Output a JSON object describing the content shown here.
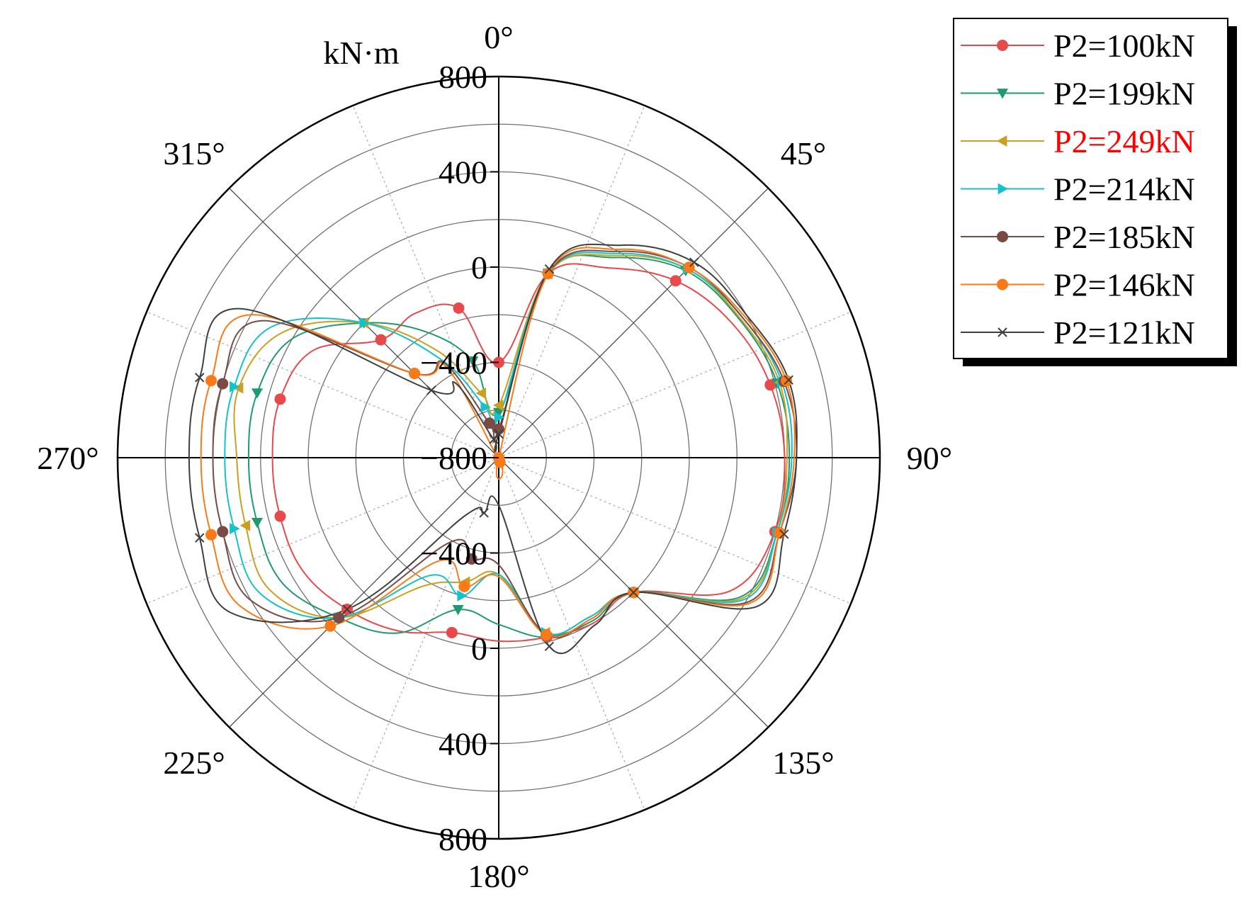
{
  "chart_data": {
    "type": "line",
    "subtype": "polar",
    "unit_label": "kN·m",
    "radial_axis": {
      "range": [
        -800,
        800
      ],
      "ticks": [
        -800,
        -400,
        0,
        400,
        800
      ],
      "tick_labels": [
        "−800",
        "−400",
        "0",
        "400",
        "800"
      ]
    },
    "angle_axis": {
      "ticks": [
        0,
        45,
        90,
        135,
        180,
        225,
        270,
        315
      ],
      "tick_labels": [
        "0°",
        "45°",
        "90°",
        "135°",
        "180°",
        "225°",
        "270°",
        "315°"
      ],
      "direction": "clockwise",
      "zero_at": "top"
    },
    "grid": true,
    "legend_position": "top-right",
    "angles": [
      0,
      15,
      30,
      45,
      60,
      75,
      90,
      105,
      120,
      135,
      150,
      165,
      180,
      195,
      210,
      225,
      240,
      255,
      270,
      285,
      300,
      315,
      330,
      345
    ],
    "series": [
      {
        "name": "P2=100kN",
        "color": "#e8494b",
        "marker": "circle",
        "values": [
          -400,
          0,
          120,
          250,
          330,
          380,
          400,
          400,
          320,
          0,
          0,
          -20,
          -30,
          -40,
          40,
          100,
          150,
          150,
          150,
          150,
          100,
          -100,
          -100,
          -150
        ]
      },
      {
        "name": "P2=199kN",
        "color": "#1f9a6f",
        "marker": "triangle-down",
        "values": [
          -610,
          0,
          170,
          310,
          365,
          410,
          420,
          410,
          370,
          0,
          -10,
          -20,
          -100,
          -140,
          50,
          150,
          250,
          250,
          250,
          250,
          200,
          0,
          -190,
          -380
        ]
      },
      {
        "name": "P2=249kN",
        "color": "#c9a020",
        "marker": "triangle-left",
        "values": [
          -580,
          0,
          180,
          320,
          370,
          420,
          410,
          410,
          380,
          0,
          -30,
          -40,
          -310,
          -260,
          -180,
          150,
          310,
          300,
          300,
          330,
          250,
          0,
          -280,
          -520
        ]
      },
      {
        "name": "P2=214kN",
        "color": "#14c2cc",
        "marker": "triangle-right",
        "values": [
          -630,
          0,
          190,
          320,
          380,
          430,
          430,
          410,
          390,
          0,
          -30,
          -40,
          -310,
          -200,
          -230,
          150,
          350,
          350,
          350,
          350,
          300,
          0,
          -330,
          -580
        ]
      },
      {
        "name": "P2=185kN",
        "color": "#7a4a45",
        "marker": "circle",
        "values": [
          -680,
          0,
          200,
          330,
          380,
          440,
          450,
          420,
          410,
          0,
          -20,
          -30,
          -350,
          -360,
          -390,
          150,
          400,
          400,
          400,
          400,
          350,
          -300,
          -340,
          -650
        ]
      },
      {
        "name": "P2=146kN",
        "color": "#f97a16",
        "marker": "circle",
        "values": [
          -800,
          0,
          210,
          330,
          390,
          450,
          440,
          420,
          420,
          0,
          -20,
          -30,
          -300,
          -240,
          -300,
          200,
          450,
          450,
          450,
          450,
          400,
          -300,
          -360,
          -820
        ]
      },
      {
        "name": "P2=121kN",
        "color": "#3f3f3f",
        "marker": "x",
        "values": [
          -700,
          20,
          230,
          360,
          400,
          460,
          450,
          440,
          450,
          0,
          10,
          20,
          -600,
          -560,
          -520,
          100,
          500,
          500,
          500,
          500,
          450,
          -400,
          -440,
          -720
        ]
      }
    ]
  },
  "legend": {
    "highlight_color": "#ff0000",
    "highlight_index": 2
  }
}
